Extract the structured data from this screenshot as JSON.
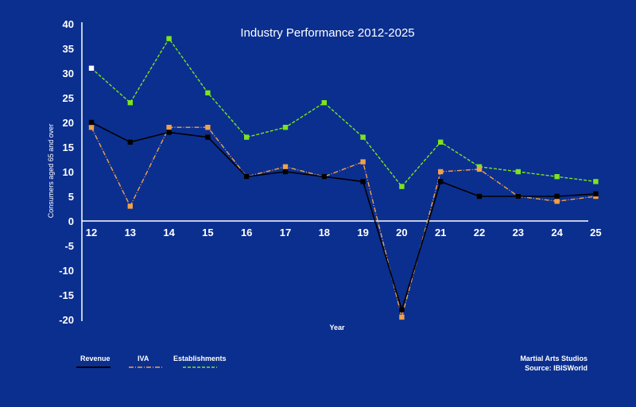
{
  "colors": {
    "background": "#0b2f8f",
    "axis": "#ffffff",
    "text": "#ffffff",
    "revenue": "#000000",
    "iva": "#f0a04b",
    "establishments": "#7ce51c"
  },
  "chart_data": {
    "type": "line",
    "title": "Industry Performance 2012-2025",
    "xlabel": "Year",
    "ylabel": "Consumers aged 65 and over",
    "x": [
      "12",
      "13",
      "14",
      "15",
      "16",
      "17",
      "18",
      "19",
      "20",
      "21",
      "22",
      "23",
      "24",
      "25"
    ],
    "ylim": [
      -20,
      40
    ],
    "yticks": [
      "40",
      "35",
      "30",
      "25",
      "20",
      "15",
      "10",
      "5",
      "0",
      "-5",
      "-10",
      "-15",
      "-20"
    ],
    "grid": false,
    "legend": "bottom-left",
    "series": [
      {
        "name": "Revenue",
        "color": "#000000",
        "line": "solid",
        "values": [
          20,
          16,
          18,
          17,
          9,
          10,
          9,
          8,
          -18,
          8,
          5,
          5,
          5,
          5.5
        ]
      },
      {
        "name": "IVA",
        "color": "#f0a04b",
        "line": "dashdot",
        "values": [
          19,
          3,
          19,
          19,
          9,
          11,
          9,
          12,
          -19.5,
          10,
          10.5,
          5,
          4,
          5
        ]
      },
      {
        "name": "Establishments",
        "color": "#7ce51c",
        "line": "dashed",
        "values": [
          31,
          24,
          37,
          26,
          17,
          19,
          24,
          17,
          7,
          16,
          11,
          10,
          9,
          8
        ]
      }
    ],
    "footnote": {
      "line1": "Martial Arts Studios",
      "line2": "Source: IBISWorld"
    }
  }
}
